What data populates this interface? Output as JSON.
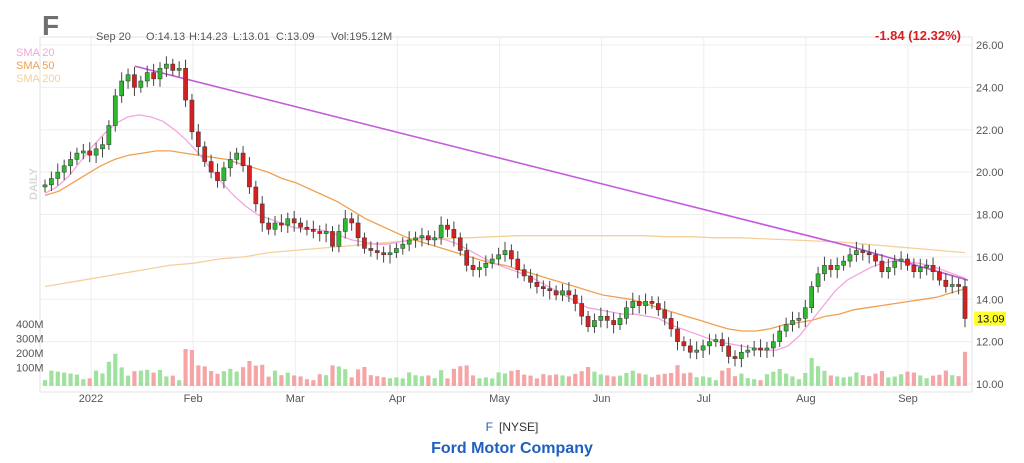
{
  "ticker": "F",
  "header": {
    "date": "Sep 20",
    "open": "O:14.13",
    "high": "H:14.23",
    "low": "L:13.01",
    "close": "C:13.09",
    "volume": "Vol:195.12M",
    "change": "-1.84 (12.32%)"
  },
  "legend": [
    {
      "label": "SMA 20",
      "color": "#f4a6de"
    },
    {
      "label": "SMA 50",
      "color": "#f0a050"
    },
    {
      "label": "SMA 200",
      "color": "#f5d09a"
    }
  ],
  "period_label": "DAILY",
  "last_price_label": "13.09",
  "footer": {
    "exchange": "[NYSE]",
    "company": "Ford Motor Company"
  },
  "colors": {
    "up": "#2db82d",
    "down": "#d62020",
    "trendline": "#c35dd8",
    "volume_up": "#9ee29e",
    "volume_down": "#f5a5a5",
    "price_tag": "#ffff33",
    "change": "#d62020"
  },
  "chart_data": {
    "type": "candlestick",
    "title": "",
    "y_axis": {
      "range": [
        10,
        26
      ],
      "ticks": [
        "26.00",
        "24.00",
        "22.00",
        "20.00",
        "18.00",
        "16.00",
        "14.00",
        "12.00",
        "10.00"
      ]
    },
    "x_axis": {
      "tick_labels": [
        "2022",
        "Feb",
        "Mar",
        "Apr",
        "May",
        "Jun",
        "Jul",
        "Aug",
        "Sep"
      ]
    },
    "volume_axis": {
      "tick_labels": [
        "400M",
        "300M",
        "200M",
        "100M"
      ]
    },
    "price": [
      19.4,
      19.7,
      20.0,
      20.3,
      20.6,
      20.9,
      21.0,
      20.8,
      21.1,
      21.3,
      22.2,
      23.6,
      24.3,
      24.6,
      24.0,
      24.3,
      24.7,
      24.4,
      24.9,
      25.1,
      24.8,
      24.9,
      23.4,
      21.9,
      21.2,
      20.5,
      20.0,
      19.6,
      20.2,
      20.6,
      20.9,
      20.3,
      19.3,
      18.5,
      17.6,
      17.3,
      17.6,
      17.5,
      17.8,
      17.6,
      17.4,
      17.3,
      17.2,
      17.1,
      17.2,
      16.5,
      17.2,
      17.8,
      17.6,
      16.9,
      16.4,
      16.3,
      16.2,
      16.1,
      16.2,
      16.4,
      16.6,
      16.8,
      16.9,
      17.0,
      16.8,
      16.9,
      17.5,
      17.3,
      16.9,
      16.3,
      15.6,
      15.4,
      15.5,
      15.7,
      15.9,
      16.1,
      16.3,
      15.9,
      15.4,
      15.1,
      14.8,
      14.6,
      14.5,
      14.4,
      14.2,
      14.4,
      14.2,
      13.8,
      13.2,
      12.7,
      13.0,
      13.2,
      13.0,
      12.8,
      13.1,
      13.6,
      13.9,
      13.7,
      13.9,
      13.8,
      13.5,
      13.1,
      12.6,
      12.0,
      11.8,
      11.5,
      11.6,
      11.8,
      12.0,
      12.1,
      11.8,
      11.3,
      11.2,
      11.5,
      11.6,
      11.7,
      11.6,
      11.7,
      12.0,
      12.5,
      12.8,
      13.0,
      13.1,
      13.6,
      14.6,
      15.2,
      15.6,
      15.4,
      15.6,
      15.8,
      16.1,
      16.3,
      16.2,
      16.1,
      15.8,
      15.3,
      15.5,
      15.8,
      15.9,
      15.6,
      15.3,
      15.5,
      15.6,
      15.3,
      14.9,
      14.6,
      14.7,
      14.6,
      13.09
    ],
    "sma_20": [
      19.0,
      19.3,
      19.8,
      20.5,
      21.2,
      21.8,
      22.3,
      22.6,
      22.7,
      22.6,
      22.4,
      22.0,
      21.5,
      20.9,
      20.2,
      19.5,
      18.9,
      18.4,
      18.0,
      17.8,
      17.6,
      17.4,
      17.3,
      17.3,
      17.2,
      17.0,
      16.8,
      16.7,
      16.6,
      16.6,
      16.7,
      16.8,
      16.9,
      16.9,
      16.8,
      16.6,
      16.3,
      16.0,
      15.7,
      15.5,
      15.3,
      15.1,
      14.8,
      14.5,
      14.2,
      13.9,
      13.6,
      13.5,
      13.4,
      13.3,
      13.3,
      13.2,
      13.1,
      12.8,
      12.6,
      12.4,
      12.2,
      12.0,
      11.9,
      11.8,
      11.7,
      11.6,
      11.6,
      11.8,
      12.3,
      13.0,
      13.7,
      14.4,
      14.9,
      15.2,
      15.5,
      15.7,
      15.8,
      15.8,
      15.7,
      15.6,
      15.4,
      15.2,
      15.0
    ],
    "sma_50": [
      18.9,
      19.1,
      19.5,
      19.9,
      20.3,
      20.6,
      20.8,
      20.9,
      21.0,
      21.0,
      20.9,
      20.8,
      20.7,
      20.6,
      20.4,
      20.2,
      20.0,
      19.7,
      19.5,
      19.2,
      18.9,
      18.6,
      18.2,
      17.8,
      17.5,
      17.2,
      16.9,
      16.7,
      16.5,
      16.3,
      16.1,
      15.9,
      15.7,
      15.6,
      15.4,
      15.2,
      15.0,
      14.8,
      14.6,
      14.4,
      14.2,
      14.1,
      14.0,
      13.8,
      13.6,
      13.4,
      13.2,
      13.0,
      12.8,
      12.6,
      12.5,
      12.5,
      12.6,
      12.8,
      12.9,
      13.0,
      13.2,
      13.3,
      13.5,
      13.6,
      13.7,
      13.8,
      13.9,
      14.0,
      14.1,
      14.3,
      14.5
    ],
    "sma_200": [
      14.6,
      14.8,
      15.0,
      15.2,
      15.4,
      15.6,
      15.7,
      15.9,
      16.0,
      16.2,
      16.3,
      16.4,
      16.5,
      16.6,
      16.7,
      16.8,
      16.85,
      16.9,
      16.95,
      17.0,
      17.0,
      17.0,
      17.0,
      17.0,
      17.0,
      16.95,
      16.95,
      16.9,
      16.9,
      16.85,
      16.8,
      16.75,
      16.7,
      16.6,
      16.5,
      16.4,
      16.3,
      16.2
    ],
    "trendline": [
      [
        25.0,
        16.5
      ],
      [
        14.9
      ]
    ]
  }
}
